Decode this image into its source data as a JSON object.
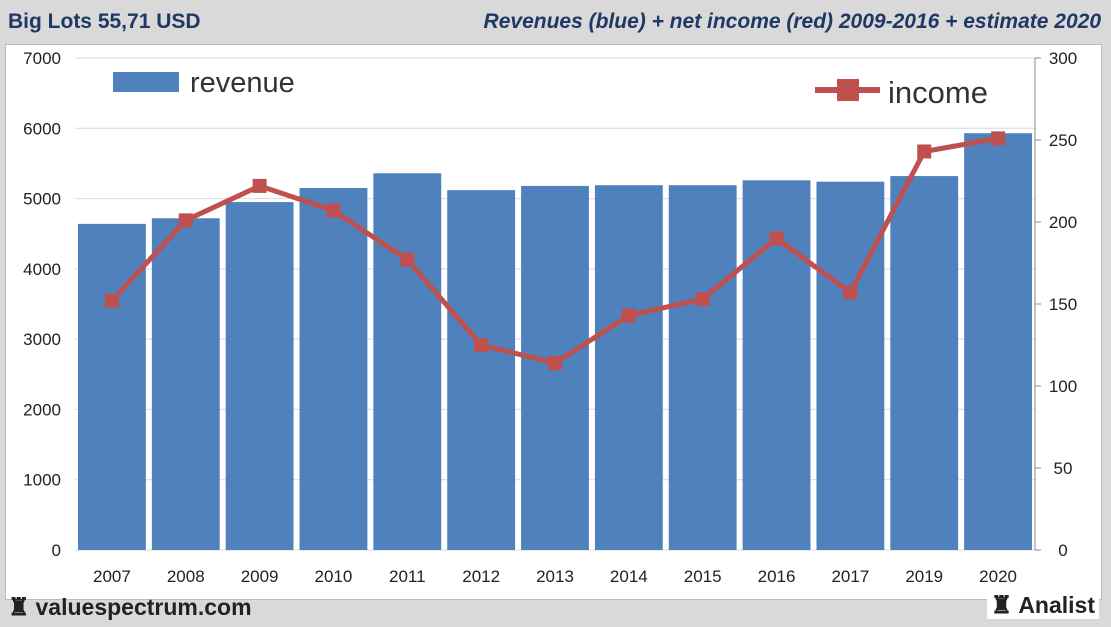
{
  "header": {
    "left": "Big Lots 55,71 USD",
    "right": "Revenues (blue) + net income (red) 2009-2016 + estimate 2020"
  },
  "footer": {
    "left": "valuespectrum.com",
    "right": "Analist",
    "icon": "rook-icon"
  },
  "colors": {
    "bar": "#4f81bd",
    "line": "#c0504d",
    "grid": "#d9d9d9"
  },
  "chart_data": {
    "type": "bar+line",
    "categories": [
      "2007",
      "2008",
      "2009",
      "2010",
      "2011",
      "2012",
      "2013",
      "2014",
      "2015",
      "2016",
      "2017",
      "2019",
      "2020"
    ],
    "series": [
      {
        "name": "revenue",
        "type": "bar",
        "axis": "left",
        "values": [
          4640,
          4720,
          4950,
          5150,
          5360,
          5120,
          5180,
          5190,
          5190,
          5260,
          5240,
          5320,
          5930
        ]
      },
      {
        "name": "income",
        "type": "line",
        "axis": "right",
        "values": [
          152,
          201,
          222,
          207,
          177,
          125,
          114,
          143,
          153,
          190,
          157,
          243,
          251
        ]
      }
    ],
    "left_axis": {
      "ylim": [
        0,
        7000
      ],
      "ticks": [
        "0",
        "1000",
        "2000",
        "3000",
        "4000",
        "5000",
        "6000",
        "7000"
      ]
    },
    "right_axis": {
      "ylim": [
        0,
        300
      ],
      "ticks": [
        "0",
        "50",
        "100",
        "150",
        "200",
        "250",
        "300"
      ]
    },
    "grid": true,
    "legend": {
      "revenue": "revenue",
      "income": "income"
    }
  }
}
